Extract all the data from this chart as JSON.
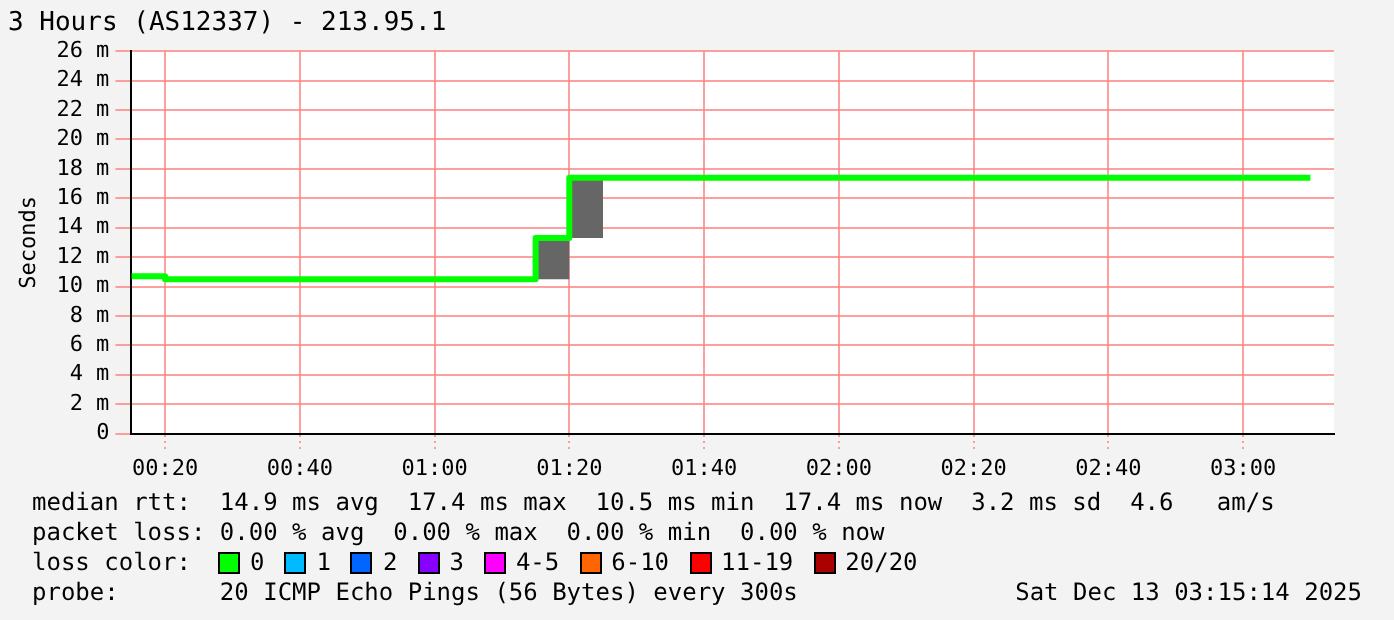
{
  "chart_data": {
    "type": "step",
    "title": "3 Hours (AS12337) - 213.95.1",
    "ylabel": "Seconds",
    "x": [
      0.25,
      0.3333,
      0.4167,
      0.5,
      0.5833,
      0.6667,
      0.75,
      0.8333,
      0.9167,
      1,
      1.0833,
      1.1667,
      1.25,
      1.3333,
      1.4167,
      1.5,
      1.5833,
      1.6667,
      1.75,
      1.8333,
      1.9167,
      2,
      2.0833,
      2.1667,
      2.25,
      2.3333,
      2.4167,
      2.5,
      2.5833,
      2.6667,
      2.75,
      2.8333,
      2.9167,
      3,
      3.0833,
      3.1667
    ],
    "series": [
      {
        "color": "#00ff00",
        "values": [
          10.7,
          10.5,
          10.5,
          10.5,
          10.5,
          10.5,
          10.5,
          10.5,
          10.5,
          10.5,
          10.5,
          10.5,
          13.3,
          17.4,
          17.4,
          17.4,
          17.4,
          17.4,
          17.4,
          17.4,
          17.4,
          17.4,
          17.4,
          17.4,
          17.4,
          17.4,
          17.4,
          17.4,
          17.4,
          17.4,
          17.4,
          17.4,
          17.4,
          17.4,
          17.4,
          17.4
        ],
        "lower": [
          10.7,
          10.5,
          10.5,
          10.5,
          10.5,
          10.5,
          10.5,
          10.5,
          10.5,
          10.5,
          10.5,
          10.5,
          10.5,
          13.3,
          17.4,
          17.4,
          17.4,
          17.4,
          17.4,
          17.4,
          17.4,
          17.4,
          17.4,
          17.4,
          17.4,
          17.4,
          17.4,
          17.4,
          17.4,
          17.4,
          17.4,
          17.4,
          17.4,
          17.4,
          17.4,
          17.4
        ],
        "upper": [
          10.7,
          10.5,
          10.5,
          10.5,
          10.5,
          10.5,
          10.5,
          10.5,
          10.5,
          10.5,
          10.5,
          10.5,
          13.5,
          17.5,
          17.4,
          17.4,
          17.4,
          17.4,
          17.4,
          17.4,
          17.4,
          17.4,
          17.4,
          17.4,
          17.4,
          17.4,
          17.4,
          17.4,
          17.4,
          17.4,
          17.4,
          17.4,
          17.4,
          17.4,
          17.4,
          17.4
        ]
      }
    ],
    "xlim": [
      0.25,
      3.225
    ],
    "xticks": [
      {
        "value": 0.3333,
        "label": "00:20"
      },
      {
        "value": 0.6667,
        "label": "00:40"
      },
      {
        "value": 1,
        "label": "01:00"
      },
      {
        "value": 1.3333,
        "label": "01:20"
      },
      {
        "value": 1.6667,
        "label": "01:40"
      },
      {
        "value": 2,
        "label": "02:00"
      },
      {
        "value": 2.3333,
        "label": "02:20"
      },
      {
        "value": 2.6667,
        "label": "02:40"
      },
      {
        "value": 3,
        "label": "03:00"
      }
    ],
    "ylim": [
      0,
      26
    ],
    "yticks": [
      0,
      {
        "value": 2,
        "label": "2 m"
      },
      {
        "value": 4,
        "label": "4 m"
      },
      {
        "value": 6,
        "label": "6 m"
      },
      {
        "value": 8,
        "label": "8 m"
      },
      {
        "value": 10,
        "label": "10 m"
      },
      {
        "value": 12,
        "label": "12 m"
      },
      {
        "value": 14,
        "label": "14 m"
      },
      {
        "value": 16,
        "label": "16 m"
      },
      {
        "value": 18,
        "label": "18 m"
      },
      {
        "value": 20,
        "label": "20 m"
      },
      {
        "value": 22,
        "label": "22 m"
      },
      {
        "value": 24,
        "label": "24 m"
      },
      {
        "value": 26,
        "label": "26 m"
      }
    ],
    "grid": true,
    "legend": false,
    "marker": "none",
    "line_style": "solid",
    "annotations": [
      "median rtt:  14.9 ms avg  17.4 ms max  10.5 ms min  17.4 ms now  3.2 ms sd  4.6   am/s",
      "packet loss: 0.00 % avg  0.00 % max  0.00 % min  0.00 % now",
      "loss color:",
      "0",
      "1",
      "2",
      "3",
      "4-5",
      "6-10",
      "11-19",
      "20/20",
      "probe:       20 ICMP Echo Pings (56 Bytes) every 300s",
      "Sat Dec 13 03:15:14 2025"
    ]
  }
}
